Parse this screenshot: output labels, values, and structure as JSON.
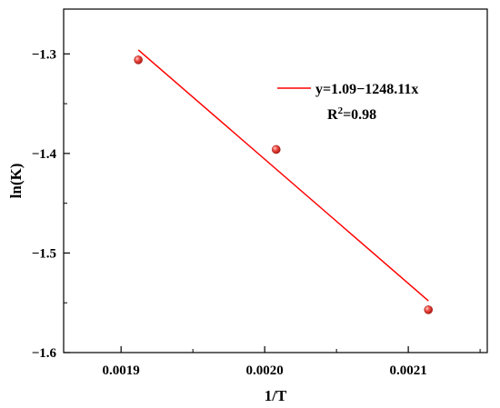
{
  "chart_data": {
    "type": "scatter",
    "xlabel": "1/T",
    "ylabel": "ln(K)",
    "xlim": [
      0.00186,
      0.002155
    ],
    "ylim": [
      -1.6,
      -1.255
    ],
    "x_ticks": [
      0.0019,
      0.002,
      0.0021
    ],
    "x_tick_labels": [
      "0.0019",
      "0.0020",
      "0.0021"
    ],
    "y_ticks": [
      -1.3,
      -1.4,
      -1.5,
      -1.6
    ],
    "y_tick_labels": [
      "-1.3",
      "-1.4",
      "-1.5",
      "-1.6"
    ],
    "grid": false,
    "points": [
      {
        "x": 0.001912,
        "y": -1.306
      },
      {
        "x": 0.002008,
        "y": -1.396
      },
      {
        "x": 0.002114,
        "y": -1.557
      }
    ],
    "fit_line": {
      "x": [
        0.001912,
        0.002114
      ],
      "y": [
        -1.296,
        -1.548
      ]
    },
    "legend": {
      "position": "top-right",
      "equation": "y=1.09−1248.11x",
      "r2_prefix": "R",
      "r2_sup": "2",
      "r2_value": "=0.98"
    },
    "colors": {
      "points": "#e8322e",
      "fit_line": "#ff0000",
      "axis": "#000000"
    }
  }
}
